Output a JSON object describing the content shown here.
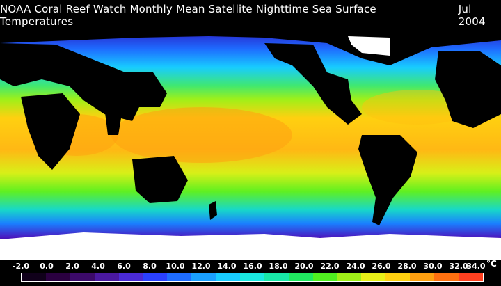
{
  "header": {
    "title": "NOAA Coral Reef Watch Monthly Mean Satellite Nighttime Sea Surface Temperatures",
    "date": "Jul 2004"
  },
  "colorbar": {
    "unit": "°C",
    "min": -2.0,
    "max": 34.0,
    "labels": [
      "-2.0",
      "0.0",
      "2.0",
      "4.0",
      "6.0",
      "8.0",
      "10.0",
      "12.0",
      "14.0",
      "16.0",
      "18.0",
      "20.0",
      "22.0",
      "24.0",
      "26.0",
      "28.0",
      "30.0",
      "32.0",
      "34.0"
    ],
    "colors": [
      "#10001a",
      "#2a0040",
      "#3c0a6a",
      "#4a18a0",
      "#4a2ad6",
      "#2a40ff",
      "#1e6cff",
      "#1aa0ff",
      "#18ccff",
      "#1ae8e0",
      "#18e8a8",
      "#20e860",
      "#50f020",
      "#a0f018",
      "#e8f018",
      "#ffd010",
      "#ffa010",
      "#ff7010",
      "#ff4020"
    ]
  }
}
